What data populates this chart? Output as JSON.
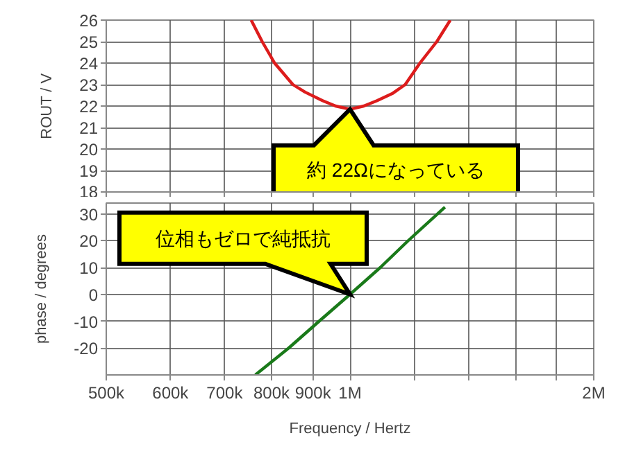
{
  "chart_data": [
    {
      "type": "line",
      "ylabel": "ROUT / V",
      "log": "x",
      "grid": true,
      "tick_labels": "y",
      "xlim": [
        500000,
        2000000
      ],
      "xticks": [
        {
          "value": 500000,
          "label": null
        },
        {
          "value": 600000,
          "label": null
        },
        {
          "value": 700000,
          "label": null
        },
        {
          "value": 800000,
          "label": null
        },
        {
          "value": 900000,
          "label": null
        },
        {
          "value": 1000000,
          "label": null
        },
        {
          "value": 1200000,
          "label": null
        },
        {
          "value": 1400000,
          "label": null
        },
        {
          "value": 1600000,
          "label": null
        },
        {
          "value": 1800000,
          "label": null
        },
        {
          "value": 2000000,
          "label": null
        }
      ],
      "ylim": [
        18,
        26
      ],
      "yticks": [
        18,
        19,
        20,
        21,
        22,
        23,
        24,
        25,
        26
      ],
      "series": [
        {
          "color": "#dd1c1c",
          "x": [
            755000,
            779000,
            807000,
            850000,
            880000,
            925000,
            960000,
            1000000,
            1040000,
            1080000,
            1130000,
            1170000,
            1220000,
            1280000,
            1330000
          ],
          "values": [
            26,
            25,
            24,
            23,
            22.65,
            22.25,
            22.0,
            21.85,
            22.0,
            22.25,
            22.6,
            23,
            24,
            25,
            26
          ]
        }
      ],
      "annotations": [
        {
          "text": "約 22Ωになっている",
          "x": 1000000,
          "y": 21.85
        }
      ]
    },
    {
      "type": "line",
      "ylabel": "phase / degrees",
      "xlabel": "Frequency / Hertz",
      "log": "x",
      "grid": true,
      "xlim": [
        500000,
        2000000
      ],
      "xticks": [
        {
          "value": 500000,
          "label": "500k"
        },
        {
          "value": 600000,
          "label": "600k"
        },
        {
          "value": 700000,
          "label": "700k"
        },
        {
          "value": 800000,
          "label": "800k"
        },
        {
          "value": 900000,
          "label": "900k"
        },
        {
          "value": 1000000,
          "label": "1M"
        },
        {
          "value": 1200000,
          "label": null
        },
        {
          "value": 1400000,
          "label": null
        },
        {
          "value": 1600000,
          "label": null
        },
        {
          "value": 1800000,
          "label": null
        },
        {
          "value": 2000000,
          "label": "2M"
        }
      ],
      "ylim": [
        -30,
        34
      ],
      "yticks": [
        -20,
        -10,
        0,
        10,
        20,
        30
      ],
      "series": [
        {
          "color": "#1a7a1a",
          "x": [
            764000,
            840000,
            916000,
            1000000,
            1090000,
            1180000,
            1310000
          ],
          "values": [
            -30,
            -20,
            -10,
            0,
            10,
            20,
            32.5
          ]
        }
      ],
      "annotations": [
        {
          "text": "位相もゼロで純抵抗",
          "x": 1000000,
          "y": 0
        }
      ]
    }
  ]
}
